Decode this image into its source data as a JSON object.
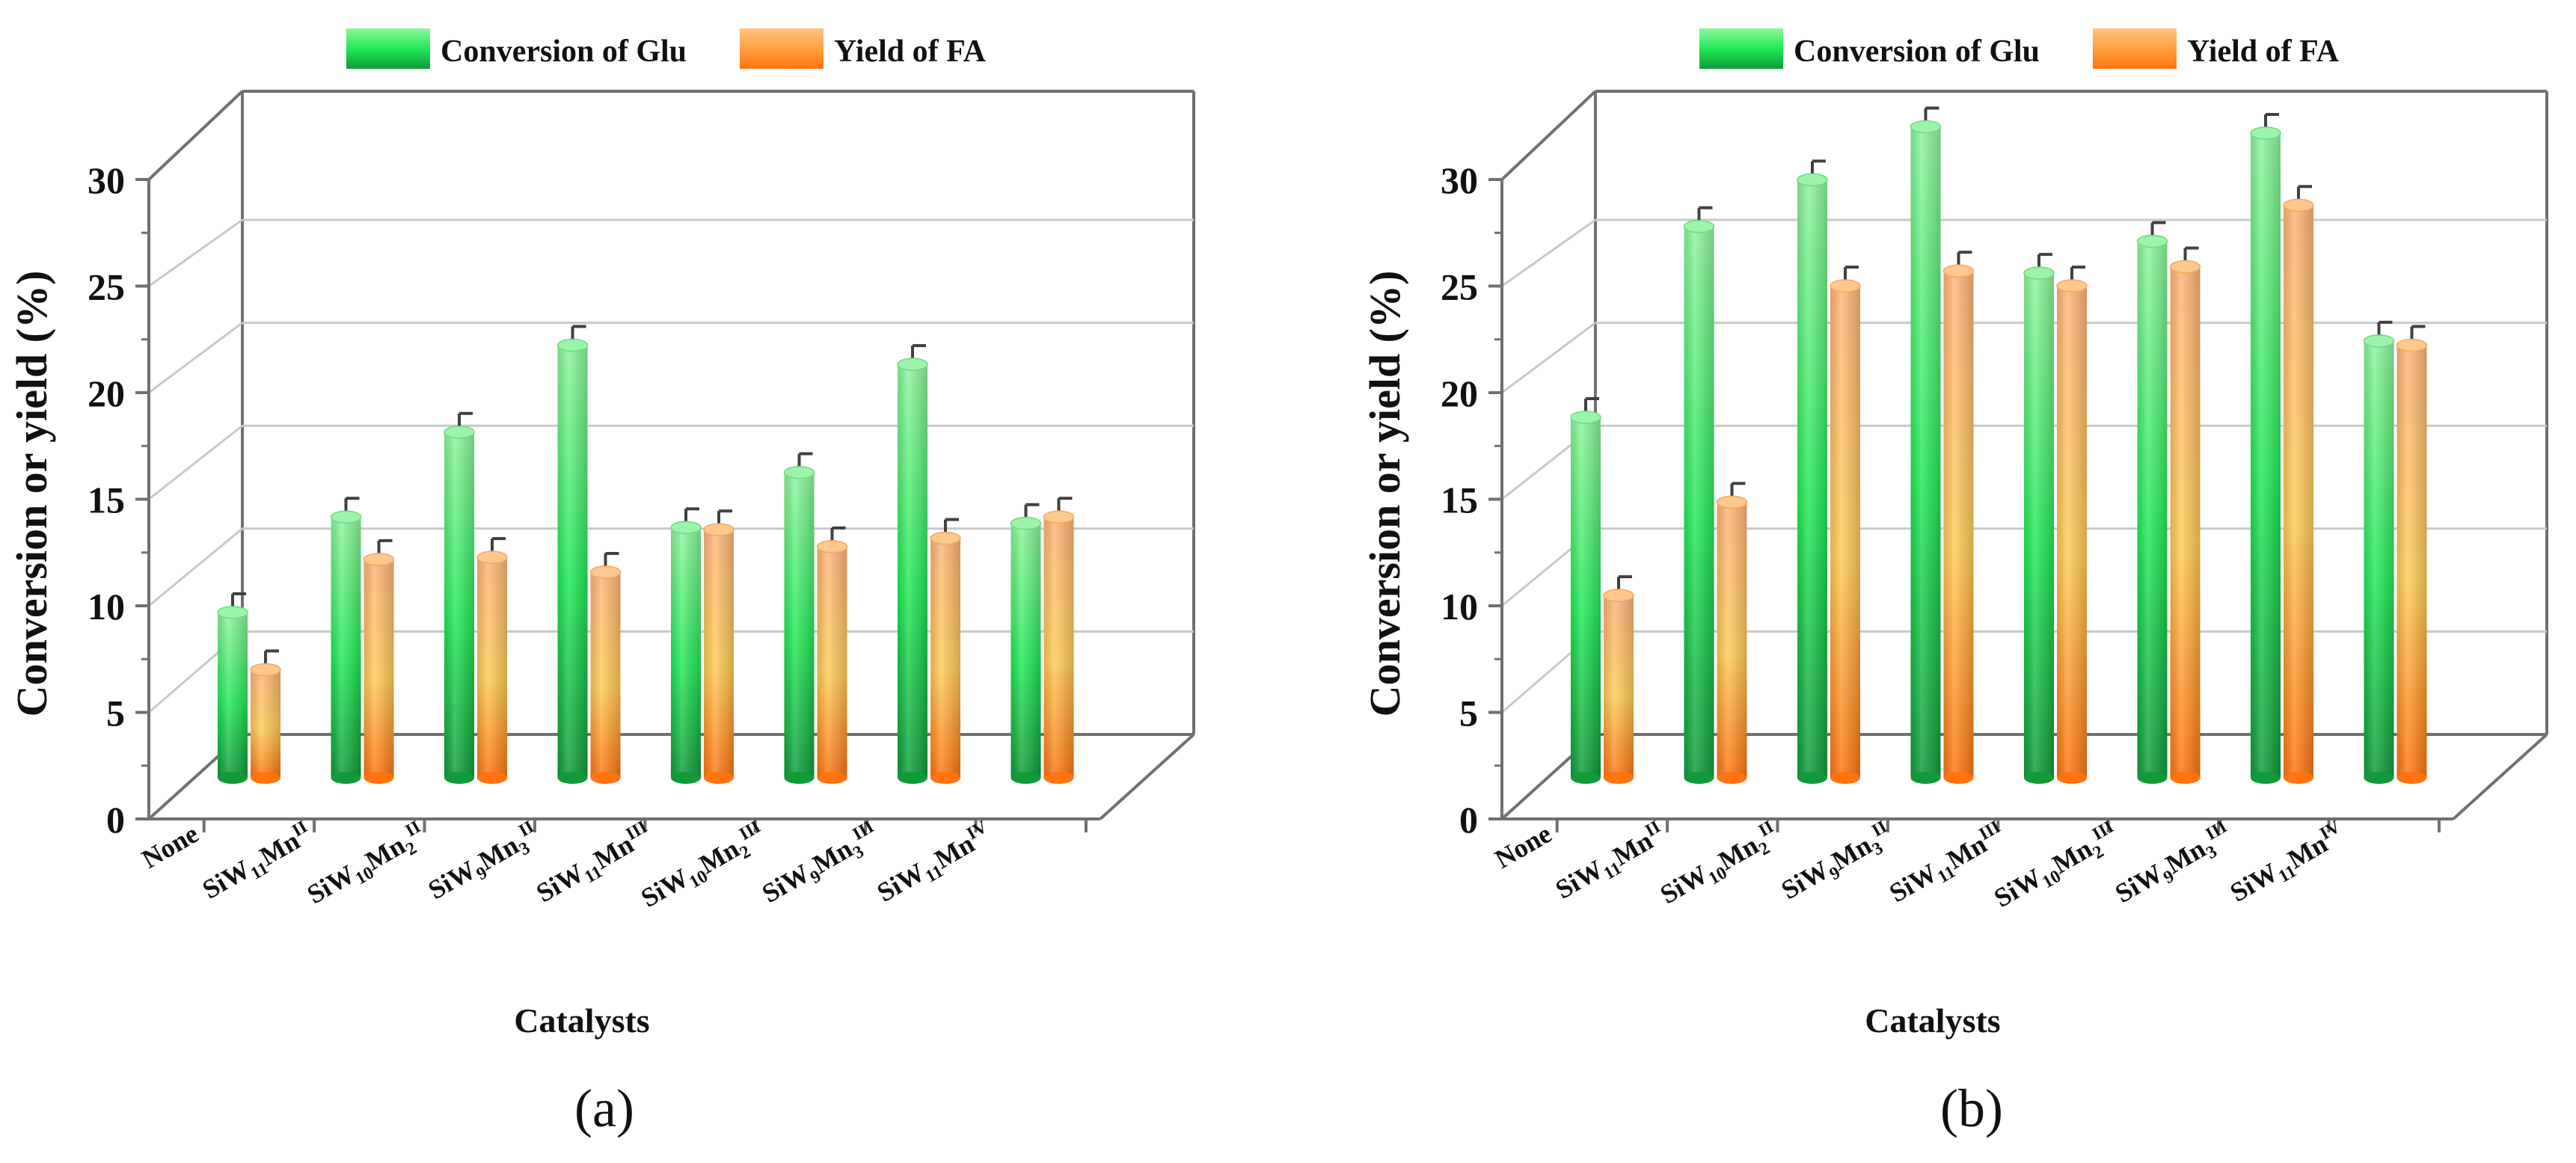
{
  "chart_data": [
    {
      "type": "bar",
      "panel_label": "(a)",
      "ylabel": "Conversion or yield  (%)",
      "xlabel": "Catalysts",
      "ylim": [
        0,
        30
      ],
      "yticks": [
        0,
        5,
        10,
        15,
        20,
        25,
        30
      ],
      "categories": [
        {
          "base": "None",
          "parts": [
            [
              "None",
              ""
            ]
          ]
        },
        {
          "base": "SiW11MnII",
          "parts": [
            [
              "SiW",
              ""
            ],
            [
              "11",
              "sub"
            ],
            [
              "Mn",
              ""
            ],
            [
              "II",
              "sup"
            ]
          ]
        },
        {
          "base": "SiW10Mn2II",
          "parts": [
            [
              "SiW",
              ""
            ],
            [
              "10",
              "sub"
            ],
            [
              "Mn",
              ""
            ],
            [
              "2",
              "sub"
            ],
            [
              "II",
              "sup"
            ]
          ]
        },
        {
          "base": "SiW9Mn3II",
          "parts": [
            [
              "SiW",
              ""
            ],
            [
              "9",
              "sub"
            ],
            [
              "Mn",
              ""
            ],
            [
              "3",
              "sub"
            ],
            [
              "II",
              "sup"
            ]
          ]
        },
        {
          "base": "SiW11MnIII",
          "parts": [
            [
              "SiW",
              ""
            ],
            [
              "11",
              "sub"
            ],
            [
              "Mn",
              ""
            ],
            [
              "III",
              "sup"
            ]
          ]
        },
        {
          "base": "SiW10Mn2III",
          "parts": [
            [
              "SiW",
              ""
            ],
            [
              "10",
              "sub"
            ],
            [
              "Mn",
              ""
            ],
            [
              "2",
              "sub"
            ],
            [
              "III",
              "sup"
            ]
          ]
        },
        {
          "base": "SiW9Mn3III",
          "parts": [
            [
              "SiW",
              ""
            ],
            [
              "9",
              "sub"
            ],
            [
              "Mn",
              ""
            ],
            [
              "3",
              "sub"
            ],
            [
              "III",
              "sup"
            ]
          ]
        },
        {
          "base": "SiW11MnIV",
          "parts": [
            [
              "SiW",
              ""
            ],
            [
              "11",
              "sub"
            ],
            [
              "Mn",
              ""
            ],
            [
              "IV",
              "sup"
            ]
          ]
        }
      ],
      "series": [
        {
          "name": "Conversion of Glu",
          "values": [
            7.8,
            12.3,
            16.3,
            20.4,
            11.8,
            14.4,
            19.5,
            12.0
          ],
          "errors": [
            0.6,
            0.6,
            0.6,
            0.6,
            0.6,
            0.6,
            0.6,
            0.6
          ]
        },
        {
          "name": "Yield of FA",
          "values": [
            5.1,
            10.3,
            10.4,
            9.7,
            11.7,
            10.9,
            11.3,
            12.3
          ],
          "errors": [
            0.6,
            0.6,
            0.6,
            0.6,
            0.6,
            0.6,
            0.6,
            0.6
          ]
        }
      ],
      "grid": true,
      "legend": "top"
    },
    {
      "type": "bar",
      "panel_label": "(b)",
      "ylabel": "Conversion or yield  (%)",
      "xlabel": "Catalysts",
      "ylim": [
        0,
        30
      ],
      "yticks": [
        0,
        5,
        10,
        15,
        20,
        25,
        30
      ],
      "categories": [
        {
          "base": "None",
          "parts": [
            [
              "None",
              ""
            ]
          ]
        },
        {
          "base": "SiW11MnII",
          "parts": [
            [
              "SiW",
              ""
            ],
            [
              "11",
              "sub"
            ],
            [
              "Mn",
              ""
            ],
            [
              "II",
              "sup"
            ]
          ]
        },
        {
          "base": "SiW10Mn2II",
          "parts": [
            [
              "SiW",
              ""
            ],
            [
              "10",
              "sub"
            ],
            [
              "Mn",
              ""
            ],
            [
              "2",
              "sub"
            ],
            [
              "II",
              "sup"
            ]
          ]
        },
        {
          "base": "SiW9Mn3II",
          "parts": [
            [
              "SiW",
              ""
            ],
            [
              "9",
              "sub"
            ],
            [
              "Mn",
              ""
            ],
            [
              "3",
              "sub"
            ],
            [
              "II",
              "sup"
            ]
          ]
        },
        {
          "base": "SiW11MnIII",
          "parts": [
            [
              "SiW",
              ""
            ],
            [
              "11",
              "sub"
            ],
            [
              "Mn",
              ""
            ],
            [
              "III",
              "sup"
            ]
          ]
        },
        {
          "base": "SiW10Mn2III",
          "parts": [
            [
              "SiW",
              ""
            ],
            [
              "10",
              "sub"
            ],
            [
              "Mn",
              ""
            ],
            [
              "2",
              "sub"
            ],
            [
              "III",
              "sup"
            ]
          ]
        },
        {
          "base": "SiW9Mn3III",
          "parts": [
            [
              "SiW",
              ""
            ],
            [
              "9",
              "sub"
            ],
            [
              "Mn",
              ""
            ],
            [
              "3",
              "sub"
            ],
            [
              "III",
              "sup"
            ]
          ]
        },
        {
          "base": "SiW11MnIV",
          "parts": [
            [
              "SiW",
              ""
            ],
            [
              "11",
              "sub"
            ],
            [
              "Mn",
              ""
            ],
            [
              "IV",
              "sup"
            ]
          ]
        }
      ],
      "series": [
        {
          "name": "Conversion of Glu",
          "values": [
            17.0,
            26.0,
            28.2,
            30.7,
            23.8,
            25.3,
            30.4,
            20.6
          ],
          "errors": [
            0.6,
            0.6,
            0.6,
            0.6,
            0.6,
            0.6,
            0.6,
            0.6
          ]
        },
        {
          "name": "Yield of FA",
          "values": [
            8.6,
            13.0,
            23.2,
            23.9,
            23.2,
            24.1,
            27.0,
            20.4
          ],
          "errors": [
            0.6,
            0.6,
            0.6,
            0.6,
            0.6,
            0.6,
            0.6,
            0.6
          ]
        }
      ],
      "grid": true,
      "legend": "top"
    }
  ],
  "colors": {
    "green_light": "#8ff59c",
    "green_mid": "#1fea55",
    "green_dark": "#109a3a",
    "orange_light": "#ffc482",
    "orange_mid": "#ffcc55",
    "orange_dark": "#ff7310",
    "frame": "#707070",
    "grid": "#c8c8c8",
    "error": "#404040"
  }
}
